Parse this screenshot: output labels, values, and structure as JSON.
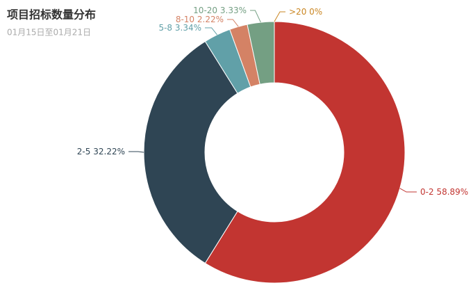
{
  "chart_data": {
    "type": "pie",
    "title": "项目招标数量分布",
    "subtitle": "01月15日至01月21日",
    "categories": [
      "0-2",
      "2-5",
      "5-8",
      "8-10",
      "10-20",
      ">20"
    ],
    "values": [
      58.89,
      32.22,
      3.34,
      2.22,
      3.33,
      0
    ],
    "value_labels": [
      "58.89%",
      "32.22%",
      "3.34%",
      "2.22%",
      "3.33%",
      "0%"
    ],
    "colors": [
      "#c23531",
      "#2f4554",
      "#61a0a8",
      "#d48265",
      "#749f83",
      "#ca8622"
    ]
  }
}
